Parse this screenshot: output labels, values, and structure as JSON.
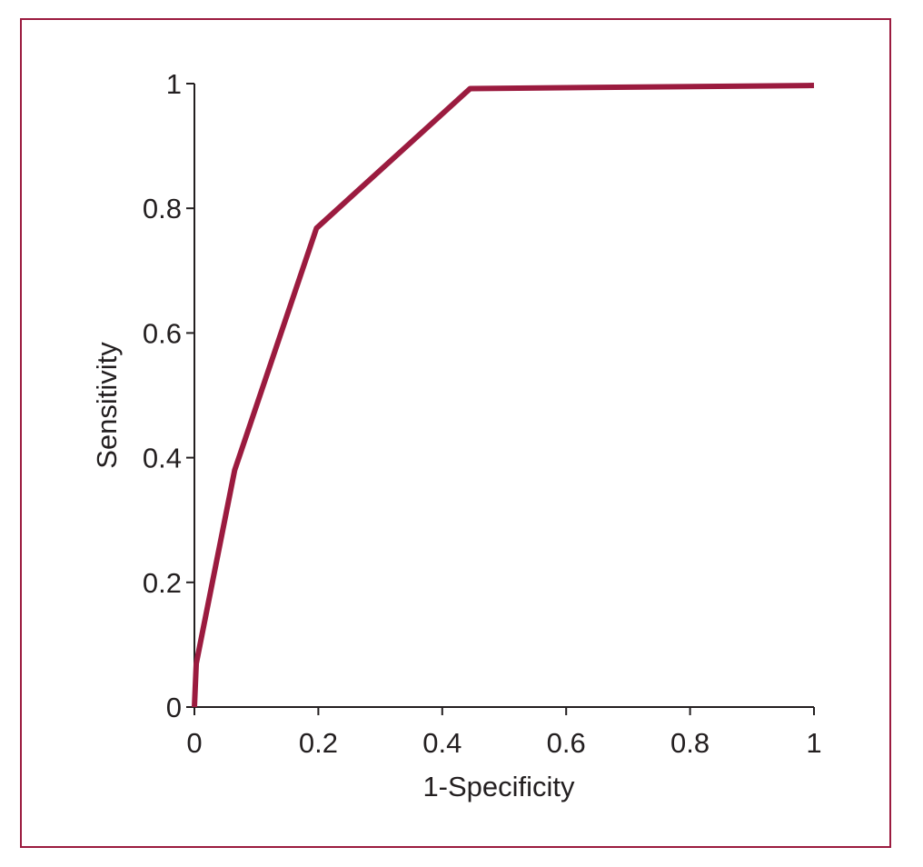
{
  "chart_data": {
    "type": "line",
    "title": "",
    "xlabel": "1-Specificity",
    "ylabel": "Sensitivity",
    "xlim": [
      0,
      1
    ],
    "ylim": [
      0,
      1
    ],
    "x_ticks": [
      0,
      0.2,
      0.4,
      0.6,
      0.8,
      1
    ],
    "y_ticks": [
      0,
      0.2,
      0.4,
      0.6,
      0.8,
      1
    ],
    "x_tick_labels": [
      "0",
      "0.2",
      "0.4",
      "0.6",
      "0.8",
      "1"
    ],
    "y_tick_labels": [
      "0",
      "0.2",
      "0.4",
      "0.6",
      "0.8",
      "1"
    ],
    "grid": false,
    "legend": "none",
    "series": [
      {
        "color": "#9b1b3f",
        "points": [
          [
            0,
            0
          ],
          [
            0.003,
            0.07
          ],
          [
            0.065,
            0.38
          ],
          [
            0.197,
            0.768
          ],
          [
            0.445,
            0.992
          ],
          [
            1,
            0.997
          ]
        ]
      }
    ]
  },
  "colors": {
    "frame": "#9b1b3f",
    "axis": "#231f20",
    "line": "#9b1b3f"
  }
}
